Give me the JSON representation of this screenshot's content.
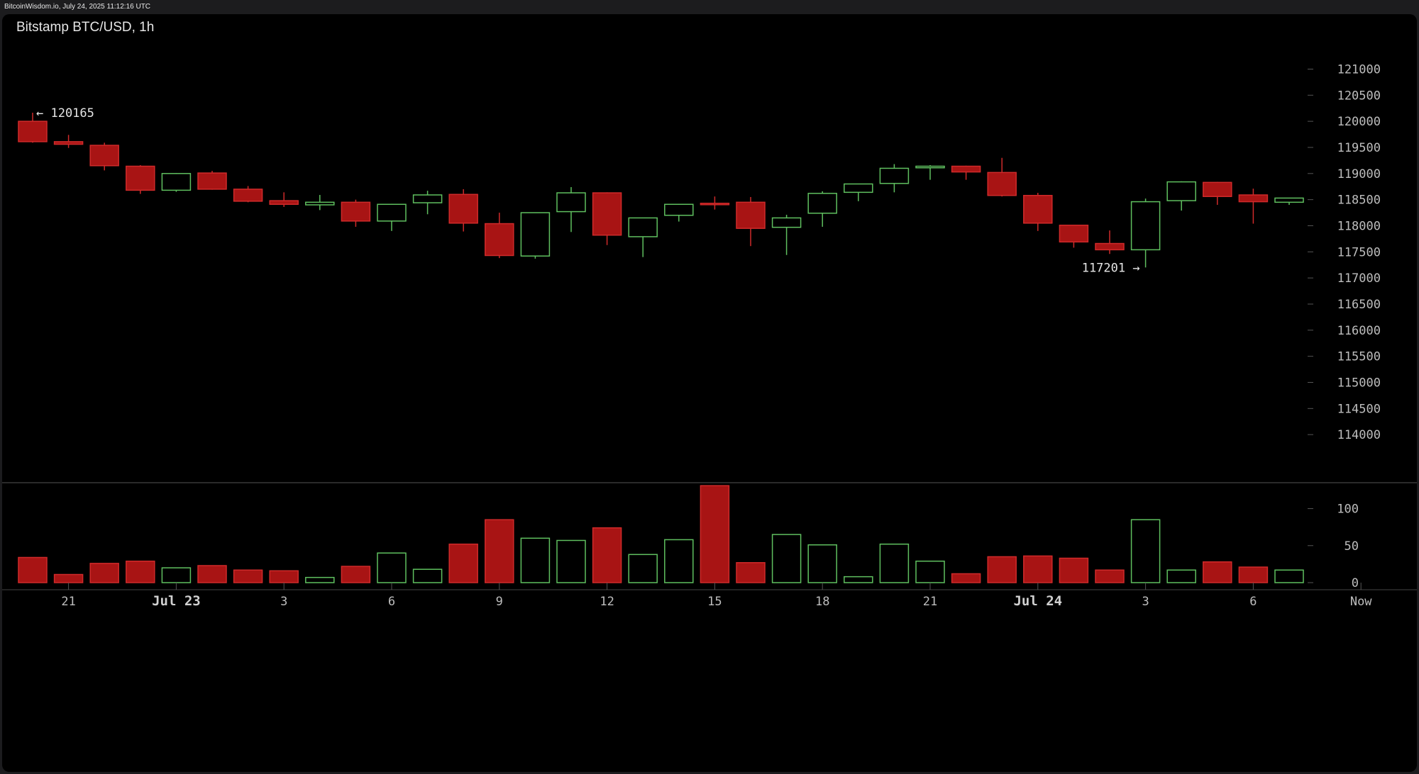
{
  "header": {
    "source": "BitcoinWisdom.io, July 24, 2025 11:12:16 UTC"
  },
  "title": "Bitstamp BTC/USD, 1h",
  "colors": {
    "up": "#5fbf5f",
    "down": "#a81414",
    "down_border": "#cf2a2a",
    "grid": "#555555",
    "background": "#000000"
  },
  "chart_data": {
    "type": "candlestick",
    "price_ylim": [
      113500,
      121400
    ],
    "price_ticks": [
      114000,
      114500,
      115000,
      115500,
      116000,
      116500,
      117000,
      117500,
      118000,
      118500,
      119000,
      119500,
      120000,
      120500,
      121000
    ],
    "volume_ylim": [
      0,
      135
    ],
    "volume_ticks": [
      0,
      50,
      100
    ],
    "x_ticks": [
      {
        "label": "21",
        "index": 1,
        "bold": false
      },
      {
        "label": "Jul 23",
        "index": 4,
        "bold": true
      },
      {
        "label": "3",
        "index": 7,
        "bold": false
      },
      {
        "label": "6",
        "index": 10,
        "bold": false
      },
      {
        "label": "9",
        "index": 13,
        "bold": false
      },
      {
        "label": "12",
        "index": 16,
        "bold": false
      },
      {
        "label": "15",
        "index": 19,
        "bold": false
      },
      {
        "label": "18",
        "index": 22,
        "bold": false
      },
      {
        "label": "21",
        "index": 25,
        "bold": false
      },
      {
        "label": "Jul 24",
        "index": 28,
        "bold": true
      },
      {
        "label": "3",
        "index": 31,
        "bold": false
      },
      {
        "label": "6",
        "index": 34,
        "bold": false
      },
      {
        "label": "Now",
        "index": 37,
        "bold": false
      }
    ],
    "candles": [
      {
        "o": 120000,
        "h": 120165,
        "l": 119590,
        "c": 119610,
        "v": 34
      },
      {
        "o": 119610,
        "h": 119740,
        "l": 119490,
        "c": 119560,
        "v": 11
      },
      {
        "o": 119540,
        "h": 119590,
        "l": 119060,
        "c": 119150,
        "v": 26
      },
      {
        "o": 119140,
        "h": 119160,
        "l": 118610,
        "c": 118680,
        "v": 29
      },
      {
        "o": 118680,
        "h": 119010,
        "l": 118650,
        "c": 119000,
        "v": 20
      },
      {
        "o": 119010,
        "h": 119050,
        "l": 118690,
        "c": 118700,
        "v": 23
      },
      {
        "o": 118700,
        "h": 118760,
        "l": 118450,
        "c": 118470,
        "v": 17
      },
      {
        "o": 118480,
        "h": 118640,
        "l": 118360,
        "c": 118410,
        "v": 16
      },
      {
        "o": 118400,
        "h": 118590,
        "l": 118300,
        "c": 118450,
        "v": 7
      },
      {
        "o": 118450,
        "h": 118500,
        "l": 117980,
        "c": 118090,
        "v": 22
      },
      {
        "o": 118090,
        "h": 118420,
        "l": 117900,
        "c": 118410,
        "v": 40
      },
      {
        "o": 118440,
        "h": 118670,
        "l": 118220,
        "c": 118590,
        "v": 18
      },
      {
        "o": 118600,
        "h": 118700,
        "l": 117890,
        "c": 118050,
        "v": 52
      },
      {
        "o": 118040,
        "h": 118250,
        "l": 117380,
        "c": 117430,
        "v": 85
      },
      {
        "o": 117420,
        "h": 118250,
        "l": 117370,
        "c": 118250,
        "v": 60
      },
      {
        "o": 118270,
        "h": 118740,
        "l": 117880,
        "c": 118630,
        "v": 57
      },
      {
        "o": 118630,
        "h": 118640,
        "l": 117630,
        "c": 117820,
        "v": 74
      },
      {
        "o": 117790,
        "h": 118150,
        "l": 117400,
        "c": 118150,
        "v": 38
      },
      {
        "o": 118200,
        "h": 118420,
        "l": 118080,
        "c": 118410,
        "v": 58
      },
      {
        "o": 118430,
        "h": 118560,
        "l": 118310,
        "c": 118420,
        "v": 131
      },
      {
        "o": 118450,
        "h": 118550,
        "l": 117610,
        "c": 117950,
        "v": 27
      },
      {
        "o": 117970,
        "h": 118210,
        "l": 117440,
        "c": 118150,
        "v": 65
      },
      {
        "o": 118240,
        "h": 118660,
        "l": 117980,
        "c": 118620,
        "v": 51
      },
      {
        "o": 118640,
        "h": 118800,
        "l": 118470,
        "c": 118800,
        "v": 8
      },
      {
        "o": 118810,
        "h": 119180,
        "l": 118640,
        "c": 119100,
        "v": 52
      },
      {
        "o": 119110,
        "h": 119160,
        "l": 118880,
        "c": 119140,
        "v": 29
      },
      {
        "o": 119140,
        "h": 119150,
        "l": 118880,
        "c": 119030,
        "v": 12
      },
      {
        "o": 119020,
        "h": 119300,
        "l": 118560,
        "c": 118580,
        "v": 35
      },
      {
        "o": 118580,
        "h": 118630,
        "l": 117900,
        "c": 118050,
        "v": 36
      },
      {
        "o": 118010,
        "h": 118020,
        "l": 117580,
        "c": 117690,
        "v": 33
      },
      {
        "o": 117660,
        "h": 117910,
        "l": 117460,
        "c": 117540,
        "v": 17
      },
      {
        "o": 117540,
        "h": 118520,
        "l": 117201,
        "c": 118460,
        "v": 85
      },
      {
        "o": 118480,
        "h": 118850,
        "l": 118290,
        "c": 118840,
        "v": 17
      },
      {
        "o": 118830,
        "h": 118840,
        "l": 118400,
        "c": 118560,
        "v": 28
      },
      {
        "o": 118590,
        "h": 118710,
        "l": 118040,
        "c": 118460,
        "v": 21
      },
      {
        "o": 118450,
        "h": 118530,
        "l": 118400,
        "c": 118530,
        "v": 17
      }
    ],
    "annotations": [
      {
        "text": "← 120165",
        "index": 0,
        "price": 120165,
        "side": "right"
      },
      {
        "text": "117201 →",
        "index": 31,
        "price": 117201,
        "side": "left"
      }
    ]
  }
}
